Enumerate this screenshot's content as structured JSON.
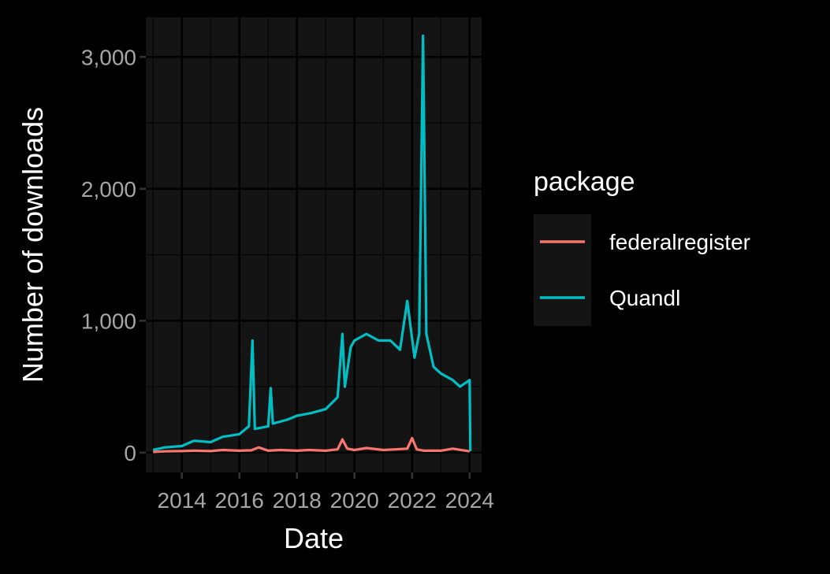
{
  "chart_data": {
    "type": "line",
    "title": "",
    "xlabel": "Date",
    "ylabel": "Number of downloads",
    "xlim": [
      "2012-10-01",
      "2024-06-01"
    ],
    "ylim": [
      -150,
      3300
    ],
    "x_ticks": [
      "2014",
      "2016",
      "2018",
      "2020",
      "2022",
      "2024"
    ],
    "y_ticks": [
      {
        "value": 0,
        "label": "0"
      },
      {
        "value": 1000,
        "label": "1,000"
      },
      {
        "value": 2000,
        "label": "2,000"
      },
      {
        "value": 3000,
        "label": "3,000"
      }
    ],
    "grid": true,
    "legend": {
      "title": "package",
      "position": "right"
    },
    "series": [
      {
        "name": "federalregister",
        "color": "#f8766d",
        "points": [
          [
            "2013-01-01",
            5
          ],
          [
            "2013-06-01",
            10
          ],
          [
            "2014-01-01",
            12
          ],
          [
            "2014-06-01",
            15
          ],
          [
            "2015-01-01",
            12
          ],
          [
            "2015-06-01",
            20
          ],
          [
            "2016-01-01",
            15
          ],
          [
            "2016-06-01",
            18
          ],
          [
            "2016-09-01",
            40
          ],
          [
            "2017-01-01",
            15
          ],
          [
            "2017-06-01",
            20
          ],
          [
            "2018-01-01",
            15
          ],
          [
            "2018-06-01",
            20
          ],
          [
            "2019-01-01",
            15
          ],
          [
            "2019-06-01",
            25
          ],
          [
            "2019-08-01",
            100
          ],
          [
            "2019-10-01",
            30
          ],
          [
            "2020-01-01",
            20
          ],
          [
            "2020-06-01",
            35
          ],
          [
            "2021-01-01",
            20
          ],
          [
            "2021-06-01",
            25
          ],
          [
            "2021-11-01",
            30
          ],
          [
            "2022-01-01",
            110
          ],
          [
            "2022-03-01",
            25
          ],
          [
            "2022-06-01",
            15
          ],
          [
            "2023-01-01",
            15
          ],
          [
            "2023-06-01",
            30
          ],
          [
            "2024-01-01",
            10
          ]
        ]
      },
      {
        "name": "Quandl",
        "color": "#00bfc4",
        "points": [
          [
            "2013-01-01",
            20
          ],
          [
            "2013-06-01",
            40
          ],
          [
            "2014-01-01",
            50
          ],
          [
            "2014-06-01",
            90
          ],
          [
            "2015-01-01",
            80
          ],
          [
            "2015-06-01",
            120
          ],
          [
            "2016-01-01",
            140
          ],
          [
            "2016-05-01",
            200
          ],
          [
            "2016-06-15",
            850
          ],
          [
            "2016-07-15",
            180
          ],
          [
            "2017-01-01",
            200
          ],
          [
            "2017-02-01",
            490
          ],
          [
            "2017-03-01",
            220
          ],
          [
            "2017-09-01",
            250
          ],
          [
            "2018-01-01",
            280
          ],
          [
            "2018-07-01",
            300
          ],
          [
            "2019-01-01",
            330
          ],
          [
            "2019-06-01",
            420
          ],
          [
            "2019-08-01",
            900
          ],
          [
            "2019-09-01",
            500
          ],
          [
            "2019-11-15",
            800
          ],
          [
            "2020-01-01",
            850
          ],
          [
            "2020-06-01",
            900
          ],
          [
            "2020-11-01",
            850
          ],
          [
            "2021-04-01",
            850
          ],
          [
            "2021-08-01",
            780
          ],
          [
            "2021-11-01",
            1150
          ],
          [
            "2022-02-01",
            720
          ],
          [
            "2022-04-01",
            900
          ],
          [
            "2022-05-20",
            3160
          ],
          [
            "2022-07-01",
            900
          ],
          [
            "2022-10-01",
            650
          ],
          [
            "2023-01-01",
            600
          ],
          [
            "2023-06-01",
            550
          ],
          [
            "2023-09-01",
            500
          ],
          [
            "2024-01-01",
            550
          ],
          [
            "2024-01-10",
            10
          ]
        ]
      }
    ]
  }
}
